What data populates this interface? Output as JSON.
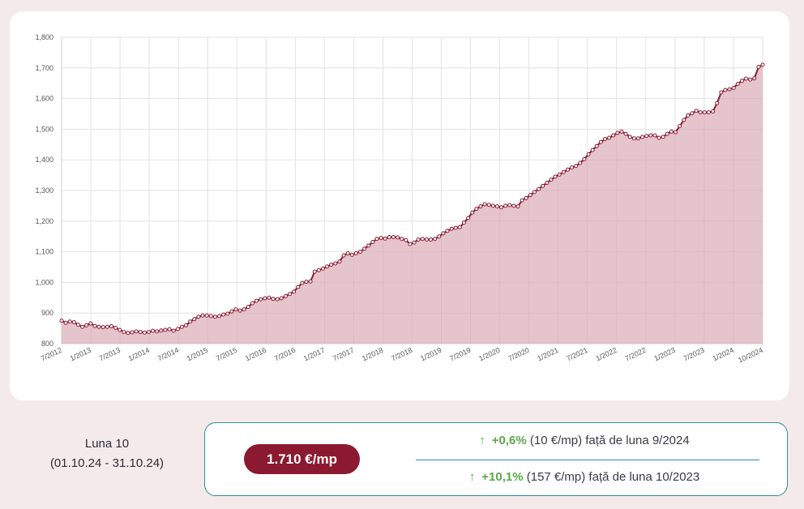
{
  "chart_data": {
    "type": "area",
    "y_ticks": [
      800,
      900,
      1000,
      1100,
      1200,
      1300,
      1400,
      1500,
      1600,
      1700,
      1800
    ],
    "y_tick_labels": [
      "800",
      "900",
      "1,000",
      "1,100",
      "1,200",
      "1,300",
      "1,400",
      "1,500",
      "1,600",
      "1,700",
      "1,800"
    ],
    "ylim": [
      800,
      1800
    ],
    "x_tick_labels": [
      "7/2012",
      "1/2013",
      "7/2013",
      "1/2014",
      "7/2014",
      "1/2015",
      "7/2015",
      "1/2016",
      "7/2016",
      "1/2017",
      "7/2017",
      "1/2018",
      "7/2018",
      "1/2019",
      "7/2019",
      "1/2020",
      "7/2020",
      "1/2021",
      "7/2021",
      "1/2022",
      "7/2022",
      "1/2023",
      "7/2023",
      "1/2024",
      "10/2024"
    ],
    "x_start": "7/2012",
    "x_end": "10/2024",
    "grid": true,
    "line_color": "#8b1a30",
    "fill_color": "#d9a5b0",
    "series": [
      {
        "values": [
          875,
          868,
          872,
          870,
          862,
          855,
          860,
          866,
          858,
          855,
          854,
          855,
          857,
          852,
          845,
          838,
          835,
          837,
          840,
          838,
          836,
          838,
          842,
          840,
          843,
          845,
          847,
          842,
          848,
          855,
          860,
          872,
          880,
          888,
          892,
          892,
          890,
          888,
          890,
          895,
          898,
          905,
          912,
          908,
          912,
          920,
          932,
          940,
          945,
          948,
          950,
          946,
          945,
          948,
          955,
          962,
          970,
          985,
          998,
          1002,
          1003,
          1035,
          1040,
          1045,
          1052,
          1058,
          1062,
          1068,
          1088,
          1095,
          1090,
          1095,
          1100,
          1110,
          1120,
          1132,
          1142,
          1145,
          1143,
          1148,
          1148,
          1147,
          1142,
          1138,
          1125,
          1130,
          1140,
          1142,
          1140,
          1140,
          1142,
          1150,
          1160,
          1168,
          1175,
          1178,
          1180,
          1195,
          1210,
          1228,
          1240,
          1248,
          1255,
          1253,
          1250,
          1248,
          1245,
          1250,
          1252,
          1250,
          1248,
          1268,
          1275,
          1285,
          1295,
          1305,
          1315,
          1325,
          1335,
          1345,
          1352,
          1360,
          1368,
          1375,
          1380,
          1390,
          1402,
          1418,
          1432,
          1445,
          1458,
          1468,
          1472,
          1480,
          1488,
          1492,
          1485,
          1475,
          1470,
          1470,
          1475,
          1478,
          1480,
          1480,
          1472,
          1475,
          1485,
          1492,
          1490,
          1510,
          1530,
          1545,
          1552,
          1560,
          1555,
          1555,
          1555,
          1558,
          1585,
          1620,
          1628,
          1630,
          1635,
          1648,
          1658,
          1665,
          1662,
          1666,
          1703,
          1710
        ]
      }
    ]
  },
  "period": {
    "label": "Luna 10",
    "range": "(01.10.24 - 31.10.24)"
  },
  "summary": {
    "price": "1.710 €/mp",
    "monthly": {
      "arrow": "↑",
      "pct": "+0,6%",
      "detail": "(10 €/mp) față de luna 9/2024"
    },
    "yearly": {
      "arrow": "↑",
      "pct": "+10,1%",
      "detail": "(157 €/mp) față de luna 10/2023"
    }
  }
}
